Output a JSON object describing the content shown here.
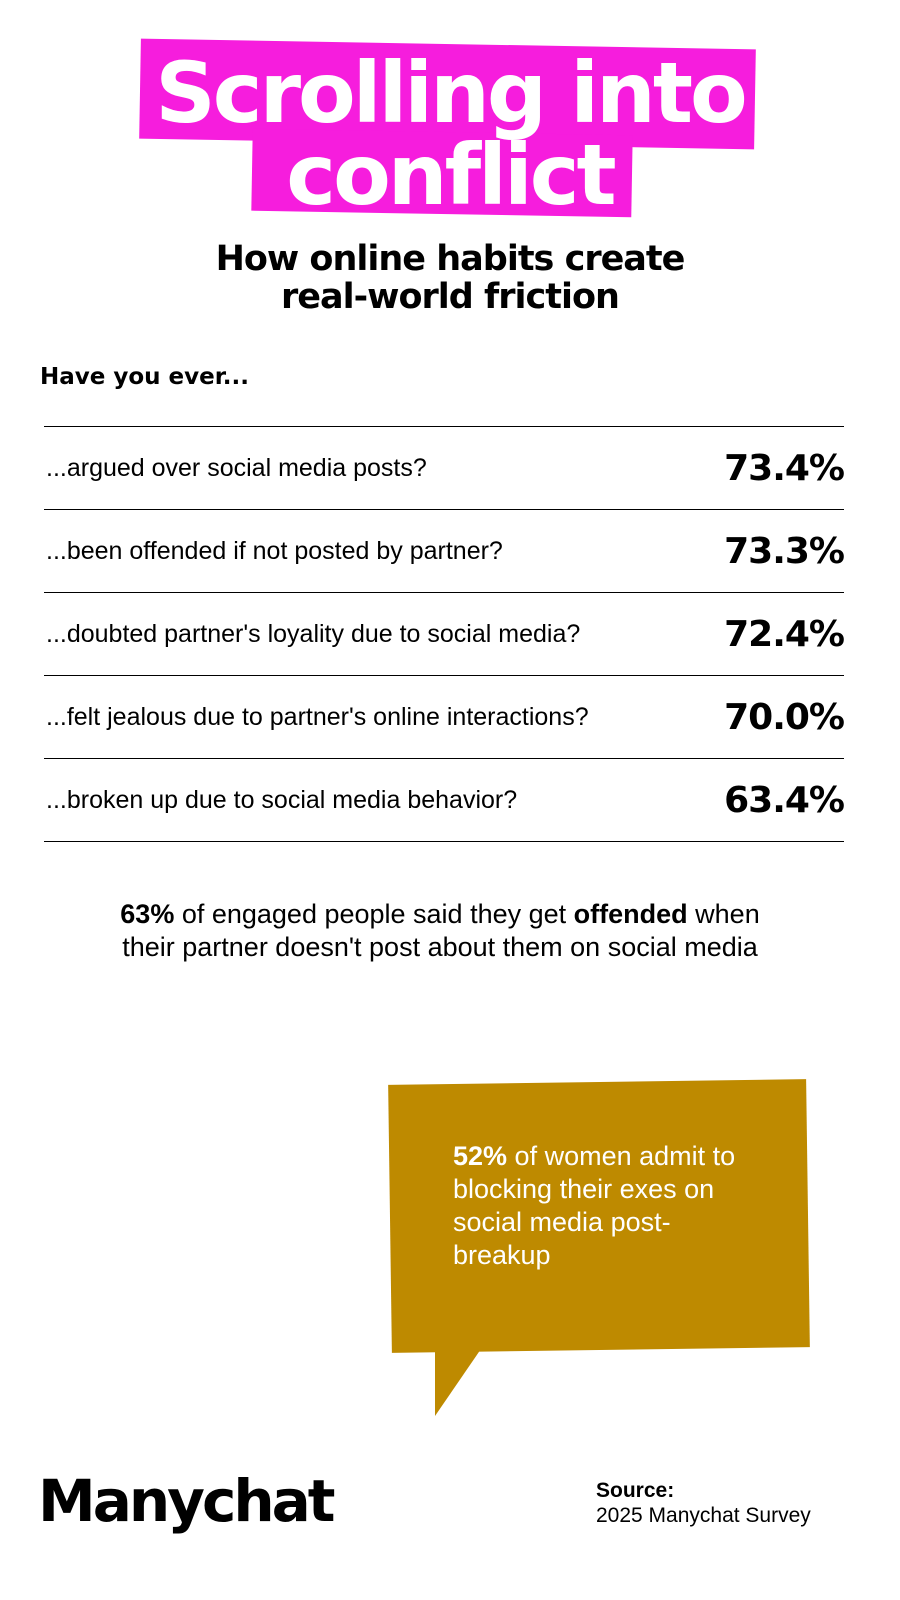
{
  "title": {
    "line1": "Scrolling into",
    "line2": "conflict"
  },
  "subtitle": {
    "line1": "How online habits create",
    "line2": "real-world friction"
  },
  "question_lead": "Have you ever...",
  "rows": [
    {
      "question": "...argued over social media posts?",
      "value": "73.4%"
    },
    {
      "question": "...been offended if not posted by partner?",
      "value": "73.3%"
    },
    {
      "question": "...doubted partner's loyality due to social media?",
      "value": "72.4%"
    },
    {
      "question": "...felt jealous due to partner's online interactions?",
      "value": "70.0%"
    },
    {
      "question": "...broken up due to social media behavior?",
      "value": "63.4%"
    }
  ],
  "stat": {
    "percent": "63%",
    "part1": " of engaged people said they get ",
    "emph": "offended",
    "part2": " when their partner doesn't post about them on social media"
  },
  "bubble": {
    "percent": "52%",
    "text": " of women admit to blocking their exes on social media post-breakup"
  },
  "logo": "Manychat",
  "source": {
    "label": "Source:",
    "value": "2025 Manychat Survey"
  },
  "colors": {
    "title_bg": "#f61ddd",
    "bubble_bg": "#be8a00"
  }
}
